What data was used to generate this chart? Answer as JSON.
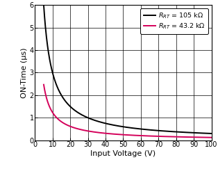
{
  "xlabel": "Input Voltage (V)",
  "ylabel": "ON-Time (μs)",
  "xlim": [
    0,
    100
  ],
  "ylim": [
    0,
    6
  ],
  "xticks": [
    0,
    10,
    20,
    30,
    40,
    50,
    60,
    70,
    80,
    90,
    100
  ],
  "yticks": [
    0,
    1,
    2,
    3,
    4,
    5,
    6
  ],
  "curve1_color": "#000000",
  "curve2_color": "#d4005a",
  "curve1_k": 30.0,
  "curve2_k": 12.35,
  "x_start": 5.0,
  "x_end": 100,
  "background_color": "#ffffff",
  "grid_color": "#888888",
  "linewidth": 1.4,
  "tick_labelsize": 7,
  "axis_labelsize": 8,
  "legend_fontsize": 6.8
}
